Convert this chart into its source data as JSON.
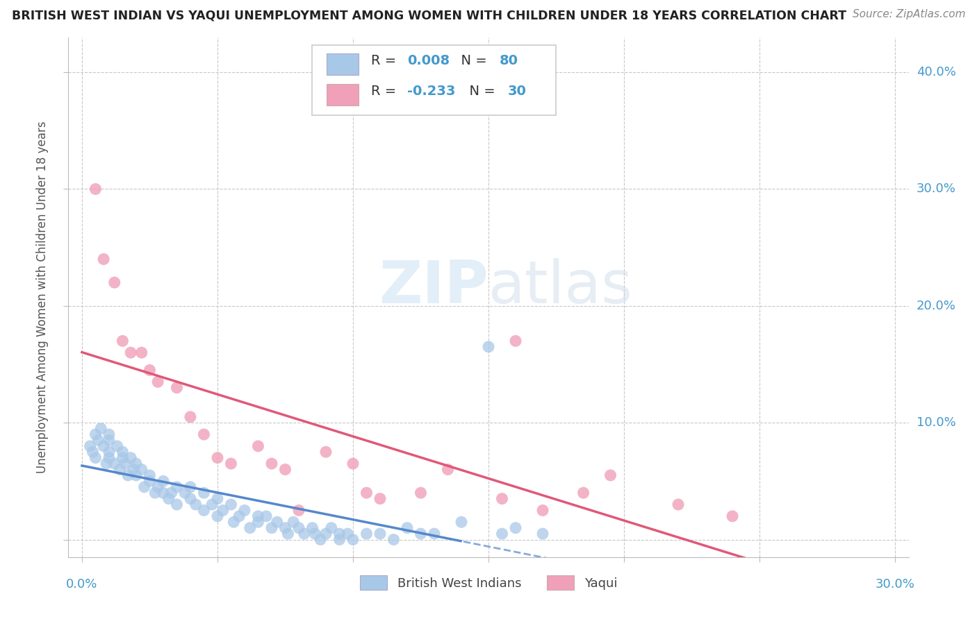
{
  "title": "BRITISH WEST INDIAN VS YAQUI UNEMPLOYMENT AMONG WOMEN WITH CHILDREN UNDER 18 YEARS CORRELATION CHART",
  "source": "Source: ZipAtlas.com",
  "ylabel": "Unemployment Among Women with Children Under 18 years",
  "bwi_R": 0.008,
  "bwi_N": 80,
  "yaqui_R": -0.233,
  "yaqui_N": 30,
  "bwi_color": "#a8c8e8",
  "yaqui_color": "#f0a0b8",
  "bwi_line_color": "#5588cc",
  "yaqui_line_color": "#e05878",
  "background_color": "#ffffff",
  "grid_color": "#c8c8c8",
  "title_color": "#222222",
  "source_color": "#888888",
  "axis_label_color": "#4499cc",
  "watermark_color": "#d0e8f8",
  "xlim": [
    0.0,
    0.3
  ],
  "ylim": [
    0.0,
    0.42
  ],
  "yticks": [
    0.0,
    0.1,
    0.2,
    0.3,
    0.4
  ],
  "ytick_labels": [
    "",
    "10.0%",
    "20.0%",
    "30.0%",
    "40.0%"
  ],
  "bwi_x": [
    0.003,
    0.004,
    0.005,
    0.005,
    0.006,
    0.007,
    0.008,
    0.009,
    0.01,
    0.01,
    0.01,
    0.01,
    0.012,
    0.013,
    0.014,
    0.015,
    0.015,
    0.016,
    0.017,
    0.018,
    0.019,
    0.02,
    0.02,
    0.022,
    0.023,
    0.025,
    0.025,
    0.027,
    0.028,
    0.03,
    0.03,
    0.032,
    0.033,
    0.035,
    0.035,
    0.038,
    0.04,
    0.04,
    0.042,
    0.045,
    0.045,
    0.048,
    0.05,
    0.05,
    0.052,
    0.055,
    0.056,
    0.058,
    0.06,
    0.062,
    0.065,
    0.065,
    0.068,
    0.07,
    0.072,
    0.075,
    0.076,
    0.078,
    0.08,
    0.082,
    0.085,
    0.086,
    0.088,
    0.09,
    0.092,
    0.095,
    0.095,
    0.098,
    0.1,
    0.105,
    0.11,
    0.115,
    0.12,
    0.125,
    0.13,
    0.14,
    0.15,
    0.155,
    0.16,
    0.17
  ],
  "bwi_y": [
    0.08,
    0.075,
    0.09,
    0.07,
    0.085,
    0.095,
    0.08,
    0.065,
    0.09,
    0.085,
    0.075,
    0.07,
    0.065,
    0.08,
    0.06,
    0.075,
    0.07,
    0.065,
    0.055,
    0.07,
    0.06,
    0.065,
    0.055,
    0.06,
    0.045,
    0.055,
    0.05,
    0.04,
    0.045,
    0.05,
    0.04,
    0.035,
    0.04,
    0.045,
    0.03,
    0.04,
    0.045,
    0.035,
    0.03,
    0.04,
    0.025,
    0.03,
    0.035,
    0.02,
    0.025,
    0.03,
    0.015,
    0.02,
    0.025,
    0.01,
    0.02,
    0.015,
    0.02,
    0.01,
    0.015,
    0.01,
    0.005,
    0.015,
    0.01,
    0.005,
    0.01,
    0.005,
    0.0,
    0.005,
    0.01,
    0.005,
    0.0,
    0.005,
    0.0,
    0.005,
    0.005,
    0.0,
    0.01,
    0.005,
    0.005,
    0.015,
    0.165,
    0.005,
    0.01,
    0.005
  ],
  "yaqui_x": [
    0.005,
    0.008,
    0.012,
    0.015,
    0.018,
    0.022,
    0.025,
    0.028,
    0.035,
    0.04,
    0.045,
    0.05,
    0.055,
    0.065,
    0.07,
    0.075,
    0.08,
    0.09,
    0.1,
    0.105,
    0.11,
    0.125,
    0.135,
    0.155,
    0.16,
    0.17,
    0.185,
    0.195,
    0.22,
    0.24
  ],
  "yaqui_y": [
    0.3,
    0.24,
    0.22,
    0.17,
    0.16,
    0.16,
    0.145,
    0.135,
    0.13,
    0.105,
    0.09,
    0.07,
    0.065,
    0.08,
    0.065,
    0.06,
    0.025,
    0.075,
    0.065,
    0.04,
    0.035,
    0.04,
    0.06,
    0.035,
    0.17,
    0.025,
    0.04,
    0.055,
    0.03,
    0.02
  ]
}
